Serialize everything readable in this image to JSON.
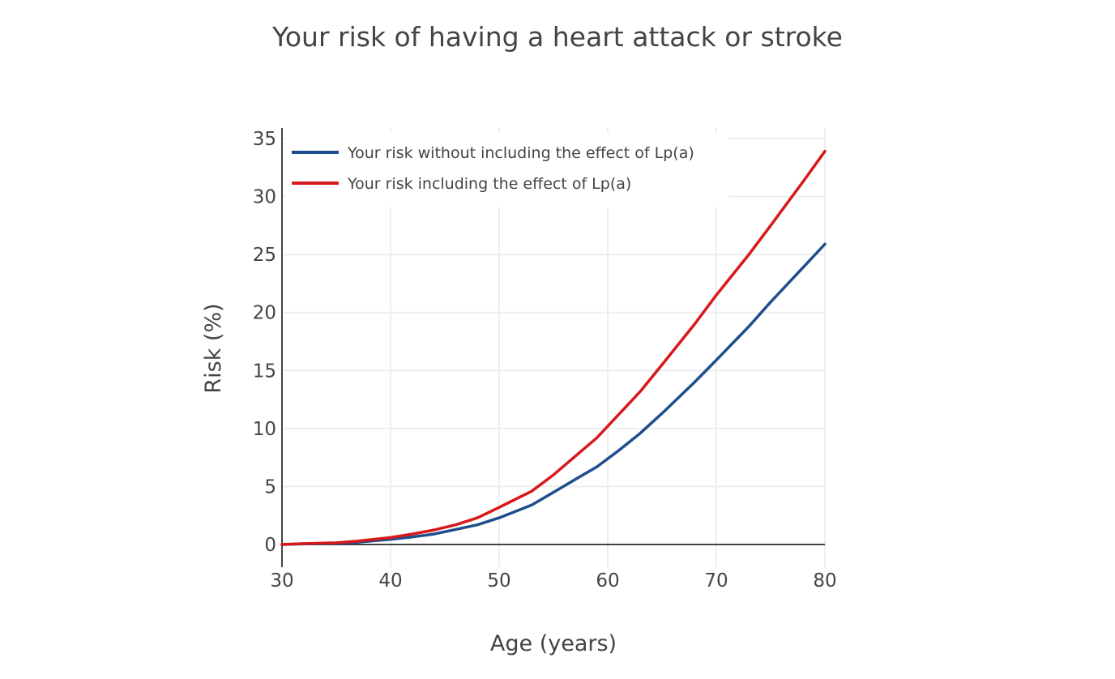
{
  "chart_data": {
    "type": "line",
    "title": "Your risk of having a heart attack or stroke",
    "xlabel": "Age (years)",
    "ylabel": "Risk (%)",
    "xlim": [
      30,
      80
    ],
    "ylim": [
      -2,
      36
    ],
    "x_ticks": [
      "30",
      "40",
      "50",
      "60",
      "70",
      "80"
    ],
    "y_ticks": [
      "0",
      "5",
      "10",
      "15",
      "20",
      "25",
      "30",
      "35"
    ],
    "grid": true,
    "legend_position": "top-left",
    "series": [
      {
        "name": "Your risk without including the effect of Lp(a)",
        "color": "#1f4e8c",
        "x": [
          30,
          32,
          35,
          37,
          40,
          42,
          44,
          46,
          48,
          50,
          53,
          55,
          57,
          59,
          61,
          63,
          65,
          68,
          70,
          73,
          75,
          78,
          80
        ],
        "y": [
          0.0,
          0.05,
          0.1,
          0.2,
          0.45,
          0.65,
          0.9,
          1.3,
          1.7,
          2.3,
          3.4,
          4.5,
          5.6,
          6.7,
          8.1,
          9.6,
          11.3,
          14.0,
          15.9,
          18.8,
          20.9,
          23.9,
          25.9
        ]
      },
      {
        "name": "Your risk including the effect of Lp(a)",
        "color": "#d7191c",
        "x": [
          30,
          32,
          35,
          37,
          40,
          42,
          44,
          46,
          48,
          50,
          53,
          55,
          57,
          59,
          61,
          63,
          65,
          68,
          70,
          73,
          75,
          78,
          80
        ],
        "y": [
          0.0,
          0.08,
          0.15,
          0.3,
          0.6,
          0.9,
          1.25,
          1.7,
          2.3,
          3.2,
          4.6,
          6.0,
          7.6,
          9.2,
          11.2,
          13.2,
          15.5,
          19.0,
          21.5,
          25.0,
          27.5,
          31.3,
          33.9
        ]
      }
    ]
  }
}
